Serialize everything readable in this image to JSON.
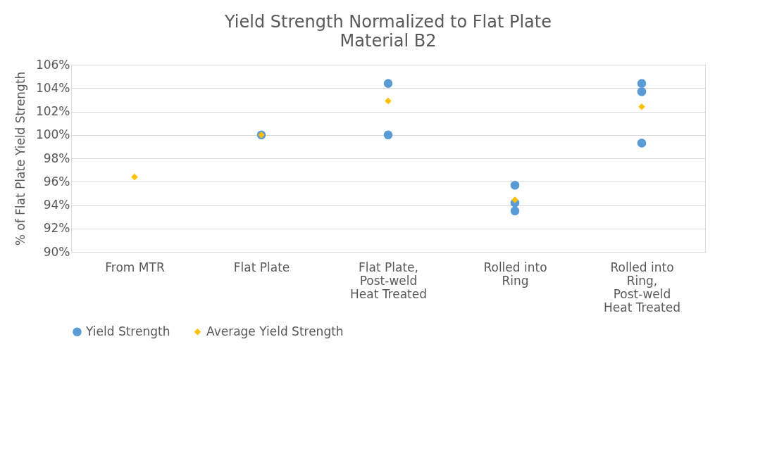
{
  "chart_data": {
    "type": "scatter",
    "title": "Yield Strength Normalized to Flat Plate",
    "subtitle": "Material B2",
    "ylabel": "% of Flat Plate Yield Strength",
    "categories": [
      "From MTR",
      "Flat Plate",
      "Flat Plate, Post-weld Heat Treated",
      "Rolled into Ring",
      "Rolled into Ring, Post-weld Heat Treated"
    ],
    "series": [
      {
        "name": "Yield Strength",
        "color": "#5b9bd5",
        "marker": "circle",
        "x": [
          "Flat Plate",
          "Flat Plate, Post-weld Heat Treated",
          "Flat Plate, Post-weld Heat Treated",
          "Rolled into Ring",
          "Rolled into Ring",
          "Rolled into Ring",
          "Rolled into Ring, Post-weld Heat Treated",
          "Rolled into Ring, Post-weld Heat Treated",
          "Rolled into Ring, Post-weld Heat Treated"
        ],
        "values": [
          100,
          104.4,
          100,
          95.7,
          94.2,
          93.5,
          104.4,
          103.7,
          99.3
        ]
      },
      {
        "name": "Average Yield Strength",
        "color": "#ffc000",
        "marker": "diamond",
        "x": [
          "From MTR",
          "Flat Plate",
          "Flat Plate, Post-weld Heat Treated",
          "Rolled into Ring",
          "Rolled into Ring, Post-weld Heat Treated"
        ],
        "values": [
          96.4,
          100,
          102.9,
          94.45,
          102.4
        ]
      }
    ],
    "ylim": [
      90,
      106
    ],
    "yticks": [
      {
        "value": 90,
        "label": "90%"
      },
      {
        "value": 92,
        "label": "92%"
      },
      {
        "value": 94,
        "label": "94%"
      },
      {
        "value": 96,
        "label": "96%"
      },
      {
        "value": 98,
        "label": "98%"
      },
      {
        "value": 100,
        "label": "100%"
      },
      {
        "value": 102,
        "label": "102%"
      },
      {
        "value": 104,
        "label": "104%"
      },
      {
        "value": 106,
        "label": "106%"
      }
    ],
    "grid": "y",
    "legend": "bottom"
  }
}
